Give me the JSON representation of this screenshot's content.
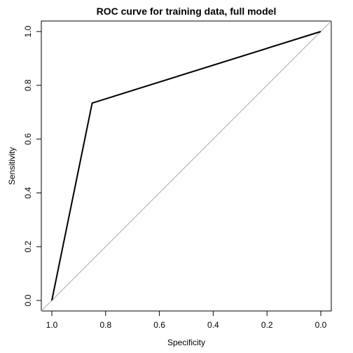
{
  "chart_data": {
    "type": "line",
    "title": "ROC curve for training data, full model",
    "xlabel": "Specificity",
    "ylabel": "Sensitivity",
    "xlim": [
      1.0,
      0.0
    ],
    "ylim": [
      0.0,
      1.0
    ],
    "x_reversed": true,
    "grid": false,
    "x_ticks": [
      1.0,
      0.8,
      0.6,
      0.4,
      0.2,
      0.0
    ],
    "x_tick_labels": [
      "1.0",
      "0.8",
      "0.6",
      "0.4",
      "0.2",
      "0.0"
    ],
    "y_ticks": [
      0.0,
      0.2,
      0.4,
      0.6,
      0.8,
      1.0
    ],
    "y_tick_labels": [
      "0.0",
      "0.2",
      "0.4",
      "0.6",
      "0.8",
      "1.0"
    ],
    "series": [
      {
        "x": [
          1.0,
          0.85,
          0.0
        ],
        "y": [
          0.0,
          0.734,
          1.0
        ],
        "color": "#000000"
      }
    ],
    "reference_line": {
      "x": [
        1.0,
        0.0
      ],
      "y": [
        0.0,
        1.0
      ],
      "color": "#aaaaaa"
    }
  }
}
